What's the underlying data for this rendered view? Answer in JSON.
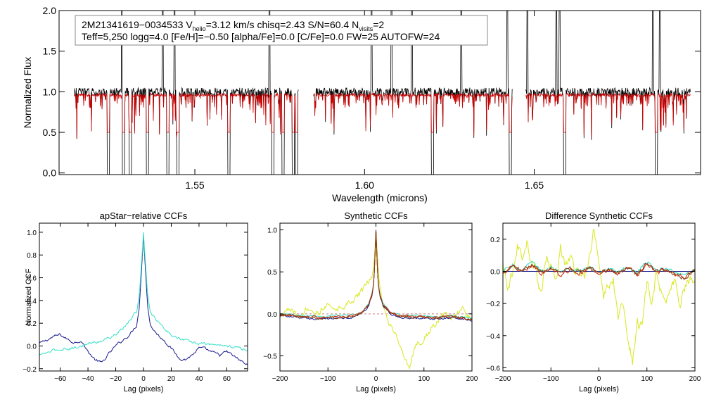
{
  "colors": {
    "observed": "#000000",
    "model": "#cc0000",
    "navy": "#1a1a8c",
    "cyan": "#33e0c8",
    "yellow": "#d8e820",
    "red": "#cc2200",
    "blue": "#2222cc",
    "brown": "#8a3a10",
    "zero_line": "#d08080"
  },
  "chart_data": [
    {
      "type": "line",
      "id": "spectrum",
      "title": "",
      "xlabel": "Wavelength (microns)",
      "ylabel": "Normalized Flux",
      "xlim": [
        1.51,
        1.699
      ],
      "ylim": [
        -0.02,
        2.0
      ],
      "xticks": [
        1.55,
        1.6,
        1.65
      ],
      "xtick_labels": [
        "1.55",
        "1.60",
        "1.65"
      ],
      "yticks": [
        0.0,
        0.5,
        1.0,
        1.5,
        2.0
      ],
      "ytick_labels": [
        "0.0",
        "0.5",
        "1.0",
        "1.5",
        "2.0"
      ],
      "segments": [
        [
          1.5145,
          1.5805
        ],
        [
          1.585,
          1.6435
        ],
        [
          1.6475,
          1.696
        ]
      ],
      "series": [
        {
          "name": "observed",
          "continuum": 1.0,
          "noise": 0.05
        },
        {
          "name": "model",
          "continuum": 0.96,
          "noise": 0.02
        }
      ],
      "deep_lines": [
        1.5245,
        1.529,
        1.531,
        1.536,
        1.542,
        1.545,
        1.56,
        1.573,
        1.576,
        1.579,
        1.58,
        1.62,
        1.643,
        1.659,
        1.686
      ],
      "spikes": [
        1.5245,
        1.5285,
        1.5405,
        1.544,
        1.572,
        1.602,
        1.608,
        1.614,
        1.6285,
        1.642,
        1.643,
        1.648,
        1.6565,
        1.6575,
        1.685,
        1.687
      ],
      "annotation": {
        "star_id": "2M21341619−0034533",
        "vhelio_prefix": "V",
        "vhelio_sub": "helio",
        "vhelio_value": "=3.12 km/s",
        "chisq": "chisq=2.43",
        "sn": "S/N=60.4",
        "nvisits_prefix": "N",
        "nvisits_sub": "visits",
        "nvisits_value": "=2",
        "line2": "Teff=5,250 logg=4.0 [Fe/H]=−0.50 [alpha/Fe]=0.0 [C/Fe]=0.0 FW=25 AUTOFW=24"
      }
    },
    {
      "type": "line",
      "id": "apstar-ccf",
      "title": "apStar−relative CCFs",
      "xlabel": "Lag (pixels)",
      "ylabel": "Normalized CCF",
      "xlim": [
        -75,
        75
      ],
      "ylim": [
        -0.22,
        1.08
      ],
      "xticks": [
        -60,
        -40,
        -20,
        0,
        20,
        40,
        60
      ],
      "xtick_labels": [
        "−60",
        "−40",
        "−20",
        "0",
        "20",
        "40",
        "60"
      ],
      "yticks": [
        -0.2,
        0.0,
        0.2,
        0.4,
        0.6,
        0.8,
        1.0
      ],
      "ytick_labels": [
        "−0.2",
        "0.0",
        "0.2",
        "0.4",
        "0.6",
        "0.8",
        "1.0"
      ],
      "series": [
        {
          "name": "navy",
          "x": [
            -75,
            -70,
            -65,
            -60,
            -55,
            -50,
            -45,
            -40,
            -35,
            -30,
            -25,
            -20,
            -15,
            -10,
            -5,
            -3,
            -1,
            0,
            1,
            3,
            5,
            10,
            15,
            20,
            25,
            30,
            35,
            40,
            45,
            50,
            55,
            60,
            65,
            70,
            75
          ],
          "y": [
            0.02,
            0.05,
            0.08,
            0.1,
            0.06,
            0.03,
            0.05,
            -0.05,
            -0.12,
            -0.15,
            -0.07,
            0.0,
            0.05,
            0.1,
            0.18,
            0.35,
            0.75,
            0.98,
            0.75,
            0.35,
            0.18,
            0.1,
            0.05,
            -0.02,
            -0.1,
            -0.12,
            -0.08,
            -0.02,
            -0.03,
            -0.06,
            -0.08,
            -0.05,
            -0.09,
            -0.13,
            -0.17
          ]
        },
        {
          "name": "cyan",
          "x": [
            -75,
            -70,
            -65,
            -60,
            -55,
            -50,
            -45,
            -40,
            -35,
            -30,
            -25,
            -20,
            -15,
            -10,
            -5,
            -3,
            -1,
            0,
            1,
            3,
            5,
            10,
            15,
            20,
            25,
            30,
            35,
            40,
            45,
            50,
            55,
            60,
            65,
            70,
            75
          ],
          "y": [
            -0.08,
            -0.06,
            -0.04,
            -0.03,
            -0.02,
            -0.02,
            0.0,
            0.02,
            0.03,
            0.05,
            0.07,
            0.1,
            0.15,
            0.22,
            0.3,
            0.45,
            0.8,
            1.0,
            0.8,
            0.45,
            0.3,
            0.22,
            0.15,
            0.1,
            0.07,
            0.05,
            0.03,
            0.02,
            0.02,
            0.01,
            0.01,
            0.0,
            -0.01,
            -0.02,
            -0.04
          ]
        }
      ]
    },
    {
      "type": "line",
      "id": "synthetic-ccf",
      "title": "Synthetic CCFs",
      "xlabel": "Lag (pixels)",
      "ylabel": "",
      "xlim": [
        -200,
        200
      ],
      "ylim": [
        -0.68,
        1.08
      ],
      "xticks": [
        -200,
        -100,
        0,
        100,
        200
      ],
      "xtick_labels": [
        "−200",
        "−100",
        "0",
        "100",
        "200"
      ],
      "yticks": [
        -0.5,
        0.0,
        0.5,
        1.0
      ],
      "ytick_labels": [
        "−0.5",
        "0.0",
        "0.5",
        "1.0"
      ],
      "series": [
        {
          "name": "yellow",
          "x": [
            -200,
            -180,
            -160,
            -140,
            -120,
            -100,
            -80,
            -60,
            -40,
            -25,
            -15,
            -8,
            -4,
            -2,
            0,
            2,
            4,
            8,
            15,
            25,
            40,
            55,
            65,
            70,
            75,
            85,
            100,
            120,
            140,
            160,
            180,
            200
          ],
          "y": [
            -0.05,
            0.05,
            -0.03,
            0.08,
            0.02,
            0.1,
            0.05,
            0.12,
            0.2,
            0.3,
            0.38,
            0.45,
            0.6,
            0.8,
            1.0,
            0.8,
            0.6,
            0.3,
            0.1,
            -0.1,
            -0.25,
            -0.45,
            -0.58,
            -0.62,
            -0.5,
            -0.35,
            -0.3,
            -0.15,
            0.0,
            -0.05,
            0.05,
            -0.1
          ]
        },
        {
          "name": "navy",
          "x": [
            -200,
            -160,
            -120,
            -80,
            -50,
            -30,
            -15,
            -8,
            -4,
            -2,
            0,
            2,
            4,
            8,
            15,
            30,
            50,
            80,
            120,
            160,
            200
          ],
          "y": [
            -0.02,
            -0.04,
            -0.06,
            -0.05,
            -0.04,
            0.0,
            0.1,
            0.22,
            0.4,
            0.7,
            1.0,
            0.7,
            0.4,
            0.22,
            0.1,
            0.0,
            -0.04,
            -0.05,
            -0.06,
            -0.04,
            -0.08
          ]
        },
        {
          "name": "cyan",
          "x": [
            -200,
            -160,
            -120,
            -80,
            -50,
            -30,
            -15,
            -8,
            -4,
            -2,
            0,
            2,
            4,
            8,
            15,
            30,
            50,
            80,
            120,
            160,
            200
          ],
          "y": [
            0.0,
            -0.02,
            -0.03,
            -0.02,
            -0.01,
            0.02,
            0.12,
            0.24,
            0.42,
            0.7,
            0.99,
            0.7,
            0.42,
            0.24,
            0.12,
            0.02,
            -0.01,
            -0.02,
            -0.03,
            -0.02,
            -0.05
          ]
        },
        {
          "name": "red",
          "x": [
            -200,
            -160,
            -120,
            -80,
            -50,
            -30,
            -15,
            -8,
            -4,
            -2,
            0,
            2,
            4,
            8,
            15,
            30,
            50,
            80,
            120,
            160,
            200
          ],
          "y": [
            -0.01,
            -0.03,
            -0.04,
            -0.03,
            -0.02,
            0.01,
            0.11,
            0.23,
            0.41,
            0.7,
            0.99,
            0.7,
            0.41,
            0.23,
            0.11,
            0.01,
            -0.02,
            -0.03,
            -0.04,
            -0.03,
            -0.06
          ]
        },
        {
          "name": "brown",
          "x": [
            -200,
            -160,
            -120,
            -80,
            -50,
            -30,
            -15,
            -8,
            -4,
            -2,
            0,
            2,
            4,
            8,
            15,
            30,
            50,
            80,
            120,
            160,
            200
          ],
          "y": [
            -0.01,
            -0.03,
            -0.05,
            -0.04,
            -0.03,
            0.01,
            0.11,
            0.23,
            0.4,
            0.7,
            0.99,
            0.7,
            0.4,
            0.23,
            0.11,
            0.01,
            -0.03,
            -0.04,
            -0.05,
            -0.03,
            -0.07
          ]
        }
      ]
    },
    {
      "type": "line",
      "id": "difference-ccf",
      "title": "Difference Synthetic CCFs",
      "xlabel": "Lag (pixels)",
      "ylabel": "",
      "xlim": [
        -200,
        200
      ],
      "ylim": [
        -0.62,
        0.3
      ],
      "xticks": [
        -200,
        -100,
        0,
        100,
        200
      ],
      "xtick_labels": [
        "−200",
        "−100",
        "0",
        "100",
        "200"
      ],
      "yticks": [
        -0.6,
        -0.4,
        -0.2,
        0.0,
        0.2
      ],
      "ytick_labels": [
        "−0.6",
        "−0.4",
        "−0.2",
        "0.0",
        "0.2"
      ],
      "series": [
        {
          "name": "yellow",
          "x": [
            -200,
            -190,
            -180,
            -170,
            -160,
            -150,
            -140,
            -130,
            -120,
            -110,
            -100,
            -90,
            -80,
            -70,
            -60,
            -50,
            -40,
            -30,
            -20,
            -10,
            0,
            10,
            20,
            30,
            40,
            50,
            60,
            70,
            80,
            90,
            100,
            110,
            120,
            130,
            140,
            150,
            160,
            170,
            180,
            190,
            200
          ],
          "y": [
            0.05,
            -0.1,
            0.0,
            0.18,
            0.1,
            0.2,
            0.05,
            0.0,
            -0.15,
            0.1,
            0.05,
            -0.05,
            0.15,
            0.05,
            0.08,
            0.0,
            0.02,
            -0.05,
            0.1,
            0.27,
            0.05,
            -0.15,
            -0.1,
            -0.05,
            -0.3,
            -0.2,
            -0.4,
            -0.56,
            -0.3,
            -0.35,
            -0.1,
            -0.2,
            0.0,
            -0.15,
            -0.25,
            -0.1,
            -0.05,
            -0.2,
            -0.1,
            -0.05,
            -0.06
          ]
        },
        {
          "name": "navy",
          "x": [
            -200,
            200
          ],
          "y": [
            0.0,
            0.0
          ]
        },
        {
          "name": "cyan",
          "x": [
            -200,
            -180,
            -160,
            -140,
            -120,
            -100,
            -80,
            -60,
            -40,
            -20,
            0,
            20,
            40,
            60,
            80,
            100,
            120,
            140,
            160,
            180,
            200
          ],
          "y": [
            0.0,
            0.04,
            0.01,
            0.05,
            0.0,
            0.03,
            -0.01,
            0.02,
            0.0,
            0.03,
            -0.01,
            0.02,
            0.0,
            0.03,
            -0.02,
            0.06,
            0.0,
            0.02,
            -0.01,
            -0.03,
            0.02
          ]
        },
        {
          "name": "red",
          "x": [
            -200,
            -180,
            -160,
            -140,
            -120,
            -100,
            -80,
            -60,
            -40,
            -20,
            0,
            20,
            40,
            60,
            80,
            100,
            120,
            140,
            160,
            180,
            200
          ],
          "y": [
            -0.02,
            0.03,
            0.0,
            0.04,
            -0.01,
            0.02,
            -0.02,
            0.01,
            -0.01,
            0.02,
            -0.02,
            0.01,
            -0.01,
            0.02,
            -0.03,
            0.05,
            -0.01,
            0.01,
            -0.02,
            -0.05,
            0.01
          ]
        },
        {
          "name": "brown",
          "x": [
            -200,
            -180,
            -160,
            -140,
            -120,
            -100,
            -80,
            -60,
            -40,
            -20,
            0,
            20,
            40,
            60,
            80,
            100,
            120,
            140,
            160,
            180,
            200
          ],
          "y": [
            -0.01,
            0.04,
            0.01,
            0.04,
            0.0,
            0.02,
            -0.02,
            0.02,
            -0.01,
            0.03,
            -0.01,
            0.01,
            -0.01,
            0.02,
            -0.02,
            0.05,
            0.0,
            0.01,
            -0.02,
            -0.04,
            0.01
          ]
        }
      ]
    }
  ]
}
